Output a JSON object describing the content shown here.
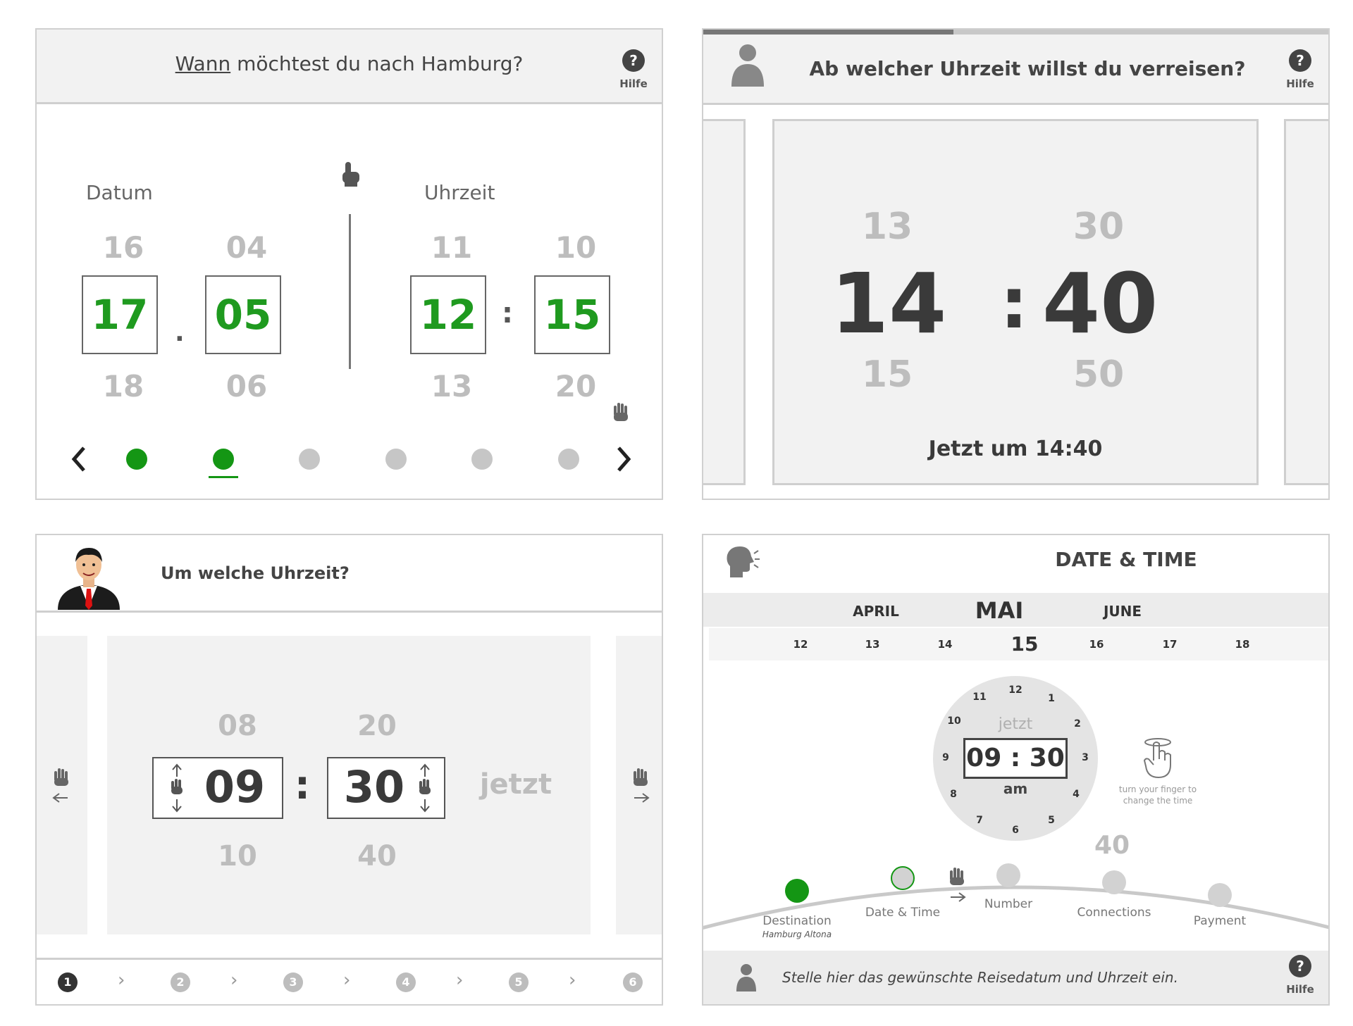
{
  "panel1": {
    "title_prefix": "Wann",
    "title_rest": "möchtest du nach Hamburg?",
    "help": "Hilfe",
    "date_label": "Datum",
    "time_label": "Uhrzeit",
    "date": {
      "day_prev": "16",
      "day": "17",
      "day_next": "18",
      "sep": ".",
      "month_prev": "04",
      "month": "05",
      "month_next": "06"
    },
    "time": {
      "hour_prev": "11",
      "hour": "12",
      "hour_next": "13",
      "sep": ":",
      "min_prev": "10",
      "min": "15",
      "min_next": "20"
    },
    "pagination": {
      "total": 6,
      "active": [
        1,
        2
      ],
      "current": 2
    },
    "icons": {
      "prev": "chevron-left-icon",
      "next": "chevron-right-icon",
      "tap": "pointing-hand-icon",
      "swipe": "swipe-hand-icon"
    }
  },
  "panel2": {
    "title": "Ab welcher Uhrzeit willst du verreisen?",
    "help": "Hilfe",
    "progress": 0.4,
    "hour_prev": "13",
    "hour": "14",
    "hour_next": "15",
    "sep": ":",
    "min_prev": "30",
    "min": "40",
    "min_next": "50",
    "caption": "Jetzt um 14:40",
    "icons": {
      "user": "user-icon",
      "help": "help-icon"
    }
  },
  "panel3": {
    "title": "Um welche Uhrzeit?",
    "hour_prev": "08",
    "hour": "09",
    "hour_next": "10",
    "sep": ":",
    "min_prev": "20",
    "min": "30",
    "min_next": "40",
    "now_label": "jetzt",
    "steps": [
      "1",
      "2",
      "3",
      "4",
      "5",
      "6"
    ],
    "active_step": 1,
    "icons": {
      "avatar": "businessman-avatar",
      "swipe": "swipe-hand-icon"
    }
  },
  "panel4": {
    "title": "DATE & TIME",
    "months": {
      "prev": "APRIL",
      "current": "MAI",
      "next": "JUNE"
    },
    "days": [
      "12",
      "13",
      "14",
      "15",
      "16",
      "17",
      "18"
    ],
    "selected_day": "15",
    "clock": {
      "numbers": [
        "12",
        "1",
        "2",
        "3",
        "4",
        "5",
        "6",
        "7",
        "8",
        "9",
        "10",
        "11"
      ],
      "now_label": "jetzt",
      "time": "09 : 30",
      "ampm": "am",
      "outside_value": "40"
    },
    "hint": {
      "line1": "turn your finger to",
      "line2": "change the time"
    },
    "steps": [
      {
        "label": "Destination",
        "sub": "Hamburg Altona",
        "state": "done"
      },
      {
        "label": "Date & Time",
        "sub": "",
        "state": "current"
      },
      {
        "label": "Number",
        "sub": "",
        "state": "todo"
      },
      {
        "label": "Connections",
        "sub": "",
        "state": "todo"
      },
      {
        "label": "Payment",
        "sub": "",
        "state": "todo"
      }
    ],
    "footer_text": "Stelle hier das gewünschte Reisedatum und Uhrzeit ein.",
    "help": "Hilfe",
    "accent": "#149614",
    "icons": {
      "voice": "speaking-head-icon",
      "user": "user-icon",
      "rotate": "rotate-finger-icon"
    }
  }
}
